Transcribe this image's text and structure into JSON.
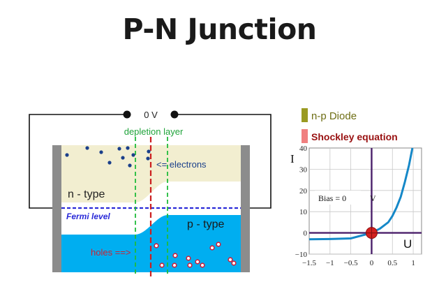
{
  "title": "P-N Junction",
  "junction": {
    "voltage_label": "0 V",
    "depletion_label": "depletion layer",
    "electrons_label": "<= electrons",
    "n_type_label": "n - type",
    "fermi_label": "Fermi level",
    "p_type_label": "p - type",
    "holes_label": "holes ==>"
  },
  "graph": {
    "legend": {
      "diode_label": "n-p Diode",
      "shockley_label": "Shockley equation"
    },
    "current_axis_label": "I",
    "voltage_axis_label": "U",
    "bias_label": "Bias = 0",
    "v_marker_label": "V",
    "y_ticks": [
      "40",
      "30",
      "20",
      "10",
      "0",
      "−10"
    ],
    "x_ticks": [
      "−1.5",
      "−1",
      "−0.5",
      "0",
      "0.5",
      "1"
    ]
  },
  "chart_data": {
    "type": "line",
    "series": [
      {
        "name": "Shockley equation",
        "x": [
          -1.5,
          -1.0,
          -0.5,
          0.0,
          0.2,
          0.4,
          0.5,
          0.6,
          0.7,
          0.8,
          0.9,
          0.98
        ],
        "y": [
          -3.0,
          -2.9,
          -2.6,
          0.0,
          2.0,
          5.0,
          8.0,
          12.0,
          17.0,
          24.0,
          32.0,
          40.0
        ]
      }
    ],
    "xlim": [
      -1.5,
      1.0
    ],
    "ylim": [
      -10,
      40
    ],
    "xlabel": "U",
    "ylabel": "I",
    "grid": true
  },
  "colors": {
    "n_region": "#f2eed0",
    "p_region": "#00aef0",
    "depletion_line": "#1fbb3a",
    "junction_line": "#cc1f1f",
    "fermi_line": "#2a2ad8",
    "curve": "#1588c8",
    "axis": "#4a1f6a",
    "legend_olive": "#9a9a22",
    "legend_red": "#f08080",
    "shockley_text": "#991111"
  }
}
